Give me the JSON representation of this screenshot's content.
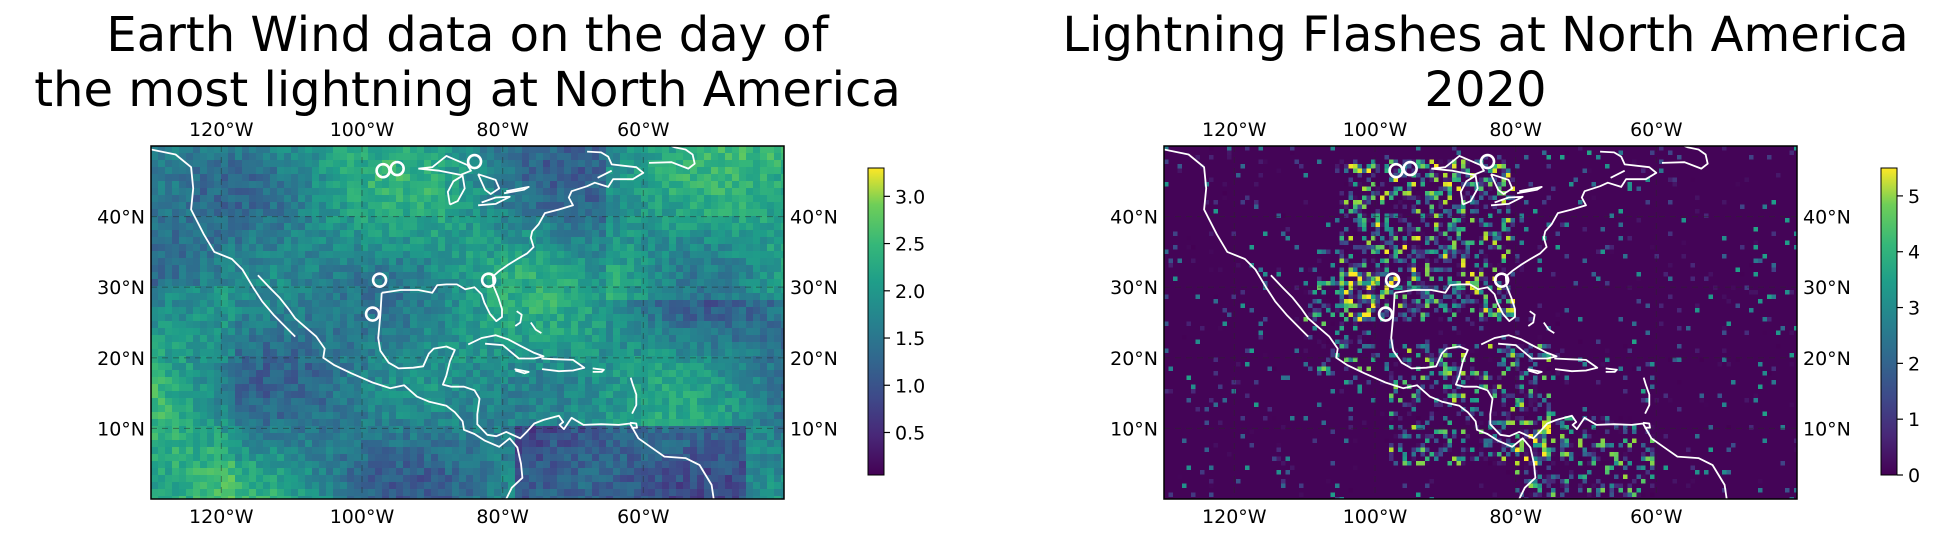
{
  "chart_data": [
    {
      "type": "heatmap",
      "title": "Earth Wind data on the day of\nthe most lightning at North America",
      "x_ticks": [
        "120°W",
        "100°W",
        "80°W",
        "60°W"
      ],
      "x_tick_values": [
        -120,
        -100,
        -80,
        -60
      ],
      "y_ticks": [
        "10°N",
        "20°N",
        "30°N",
        "40°N"
      ],
      "y_tick_values": [
        10,
        20,
        30,
        40
      ],
      "xlim": [
        -130,
        -40
      ],
      "ylim": [
        0,
        50
      ],
      "grid": true,
      "colormap": "viridis",
      "colorbar": {
        "ticks": [
          "0.5",
          "1.0",
          "1.5",
          "2.0",
          "2.5",
          "3.0"
        ],
        "tick_values": [
          0.5,
          1.0,
          1.5,
          2.0,
          2.5,
          3.0
        ],
        "range": [
          0.05,
          3.3
        ]
      },
      "markers": [
        {
          "lon": -97,
          "lat": 46.5
        },
        {
          "lon": -95,
          "lat": 46.8
        },
        {
          "lon": -84,
          "lat": 47.8
        },
        {
          "lon": -97.5,
          "lat": 31
        },
        {
          "lon": -98.5,
          "lat": 26.2
        },
        {
          "lon": -82,
          "lat": 31
        }
      ]
    },
    {
      "type": "heatmap",
      "title": "Lightning Flashes at North America\n2020",
      "x_ticks": [
        "120°W",
        "100°W",
        "80°W",
        "60°W"
      ],
      "x_tick_values": [
        -120,
        -100,
        -80,
        -60
      ],
      "y_ticks": [
        "10°N",
        "20°N",
        "30°N",
        "40°N"
      ],
      "y_tick_values": [
        10,
        20,
        30,
        40
      ],
      "xlim": [
        -130,
        -40
      ],
      "ylim": [
        0,
        50
      ],
      "grid": true,
      "colormap": "viridis",
      "colorbar": {
        "ticks": [
          "0",
          "1",
          "2",
          "3",
          "4",
          "5"
        ],
        "tick_values": [
          0,
          1,
          2,
          3,
          4,
          5
        ],
        "range": [
          0,
          5.5
        ]
      },
      "markers": [
        {
          "lon": -97,
          "lat": 46.5
        },
        {
          "lon": -95,
          "lat": 46.8
        },
        {
          "lon": -84,
          "lat": 47.8
        },
        {
          "lon": -97.5,
          "lat": 31
        },
        {
          "lon": -98.5,
          "lat": 26.2
        },
        {
          "lon": -82,
          "lat": 31
        }
      ]
    }
  ]
}
